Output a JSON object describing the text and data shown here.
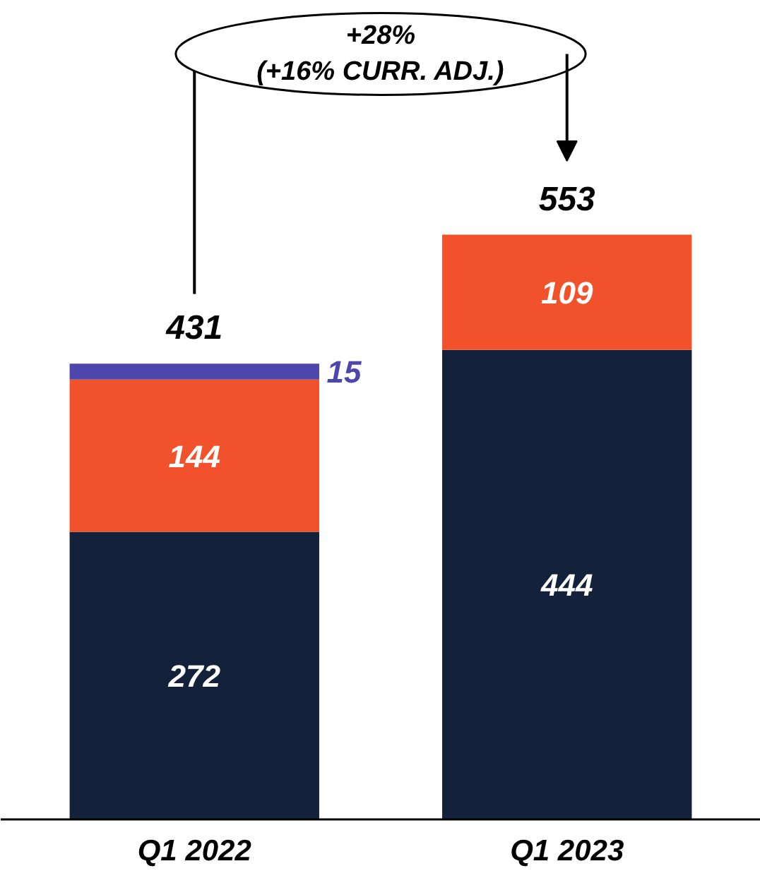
{
  "chart_data": {
    "type": "bar",
    "stacked": true,
    "categories": [
      "Q1 2022",
      "Q1 2023"
    ],
    "series": [
      {
        "color": "#13223a",
        "values": [
          272,
          444
        ]
      },
      {
        "color": "#f1522c",
        "values": [
          144,
          109
        ]
      },
      {
        "color": "#4d47ad",
        "values": [
          15,
          null
        ]
      }
    ],
    "data_labels": true,
    "totals": [
      "431",
      "553"
    ],
    "annotations": [
      "+28%\n(+16% CURR. ADJ.)"
    ],
    "grid": false,
    "tick_labels": "x"
  }
}
